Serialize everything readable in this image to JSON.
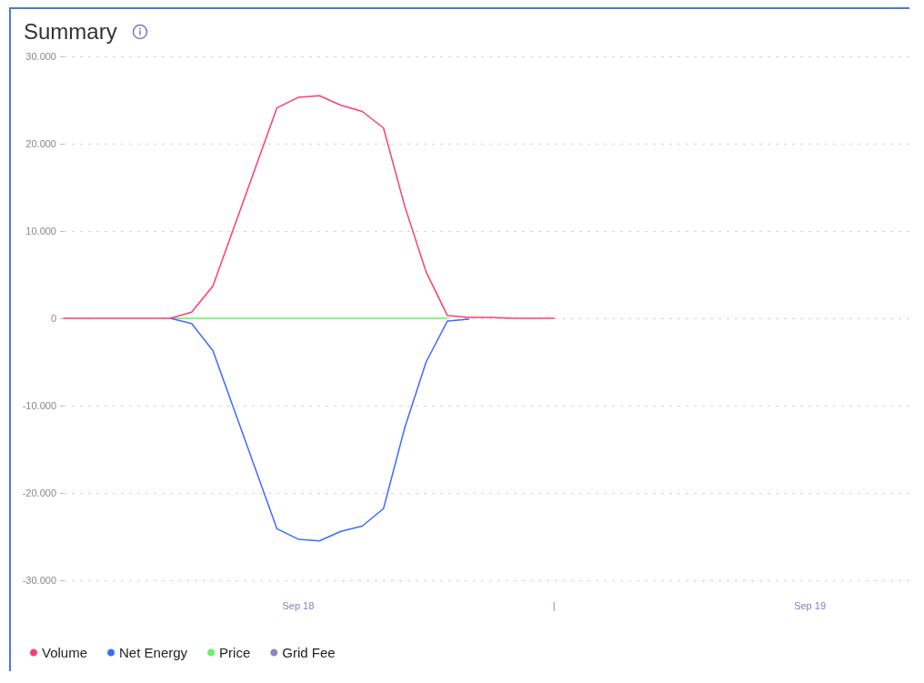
{
  "chart_data": {
    "type": "line",
    "title": "Summary",
    "x": [
      "--09-17T13:00",
      "--09-17T14:00",
      "--09-17T15:00",
      "--09-17T16:00",
      "--09-17T17:00",
      "--09-17T18:00",
      "--09-17T19:00",
      "--09-17T20:00",
      "--09-17T21:00",
      "--09-17T22:00",
      "--09-17T23:00",
      "--09-18T00:00",
      "--09-18T01:00",
      "--09-18T02:00",
      "--09-18T03:00",
      "--09-18T04:00",
      "--09-18T05:00",
      "--09-18T06:00",
      "--09-18T07:00",
      "--09-18T08:00",
      "--09-18T09:00",
      "--09-18T10:00",
      "--09-18T11:00",
      "--09-18T12:00"
    ],
    "xlim": [
      "--09-17T13:00",
      "--09-19T04:40"
    ],
    "xticks": [
      {
        "value": "--09-18",
        "label": "Sep 18"
      },
      {
        "value": "--09-18T12:00",
        "label": "|"
      },
      {
        "value": "--09-19",
        "label": "Sep 19"
      }
    ],
    "ylim": [
      -30000,
      30000
    ],
    "yticks": [
      {
        "value": -30000,
        "label": "-30.000"
      },
      {
        "value": -20000,
        "label": "-20.000"
      },
      {
        "value": -10000,
        "label": "-10.000"
      },
      0,
      {
        "value": 10000,
        "label": "10.000"
      },
      {
        "value": 20000,
        "label": "20.000"
      },
      {
        "value": 30000,
        "label": "30.000"
      }
    ],
    "series": [
      {
        "name": "Volume",
        "color": "#ff3d6e",
        "values": [
          0,
          0,
          0,
          0,
          0,
          0,
          700,
          3700,
          10500,
          17300,
          24100,
          25300,
          25500,
          24400,
          23700,
          21800,
          12800,
          5300,
          300,
          100,
          100,
          0,
          0,
          0
        ]
      },
      {
        "name": "Net Energy",
        "color": "#3d6bff",
        "values": [
          null,
          null,
          null,
          null,
          null,
          0,
          -600,
          -3700,
          -10500,
          -17300,
          -24100,
          -25300,
          -25500,
          -24400,
          -23800,
          -21800,
          -12500,
          -5000,
          -300,
          -100,
          null,
          null,
          null,
          null
        ]
      },
      {
        "name": "Price",
        "color": "#6af26a",
        "values": [
          null,
          null,
          null,
          null,
          null,
          0,
          0,
          0,
          0,
          0,
          0,
          0,
          0,
          0,
          0,
          0,
          0,
          0,
          0,
          null,
          null,
          null,
          null,
          null
        ]
      },
      {
        "name": "Grid Fee",
        "color": "#8c84c4",
        "values": [
          null,
          null,
          null,
          null,
          null,
          null,
          null,
          null,
          null,
          null,
          null,
          null,
          null,
          null,
          null,
          null,
          null,
          null,
          null,
          null,
          null,
          null,
          null,
          null
        ]
      }
    ],
    "grid": "y",
    "legend": "bottom left",
    "marker": "none",
    "line_style": "solid"
  }
}
